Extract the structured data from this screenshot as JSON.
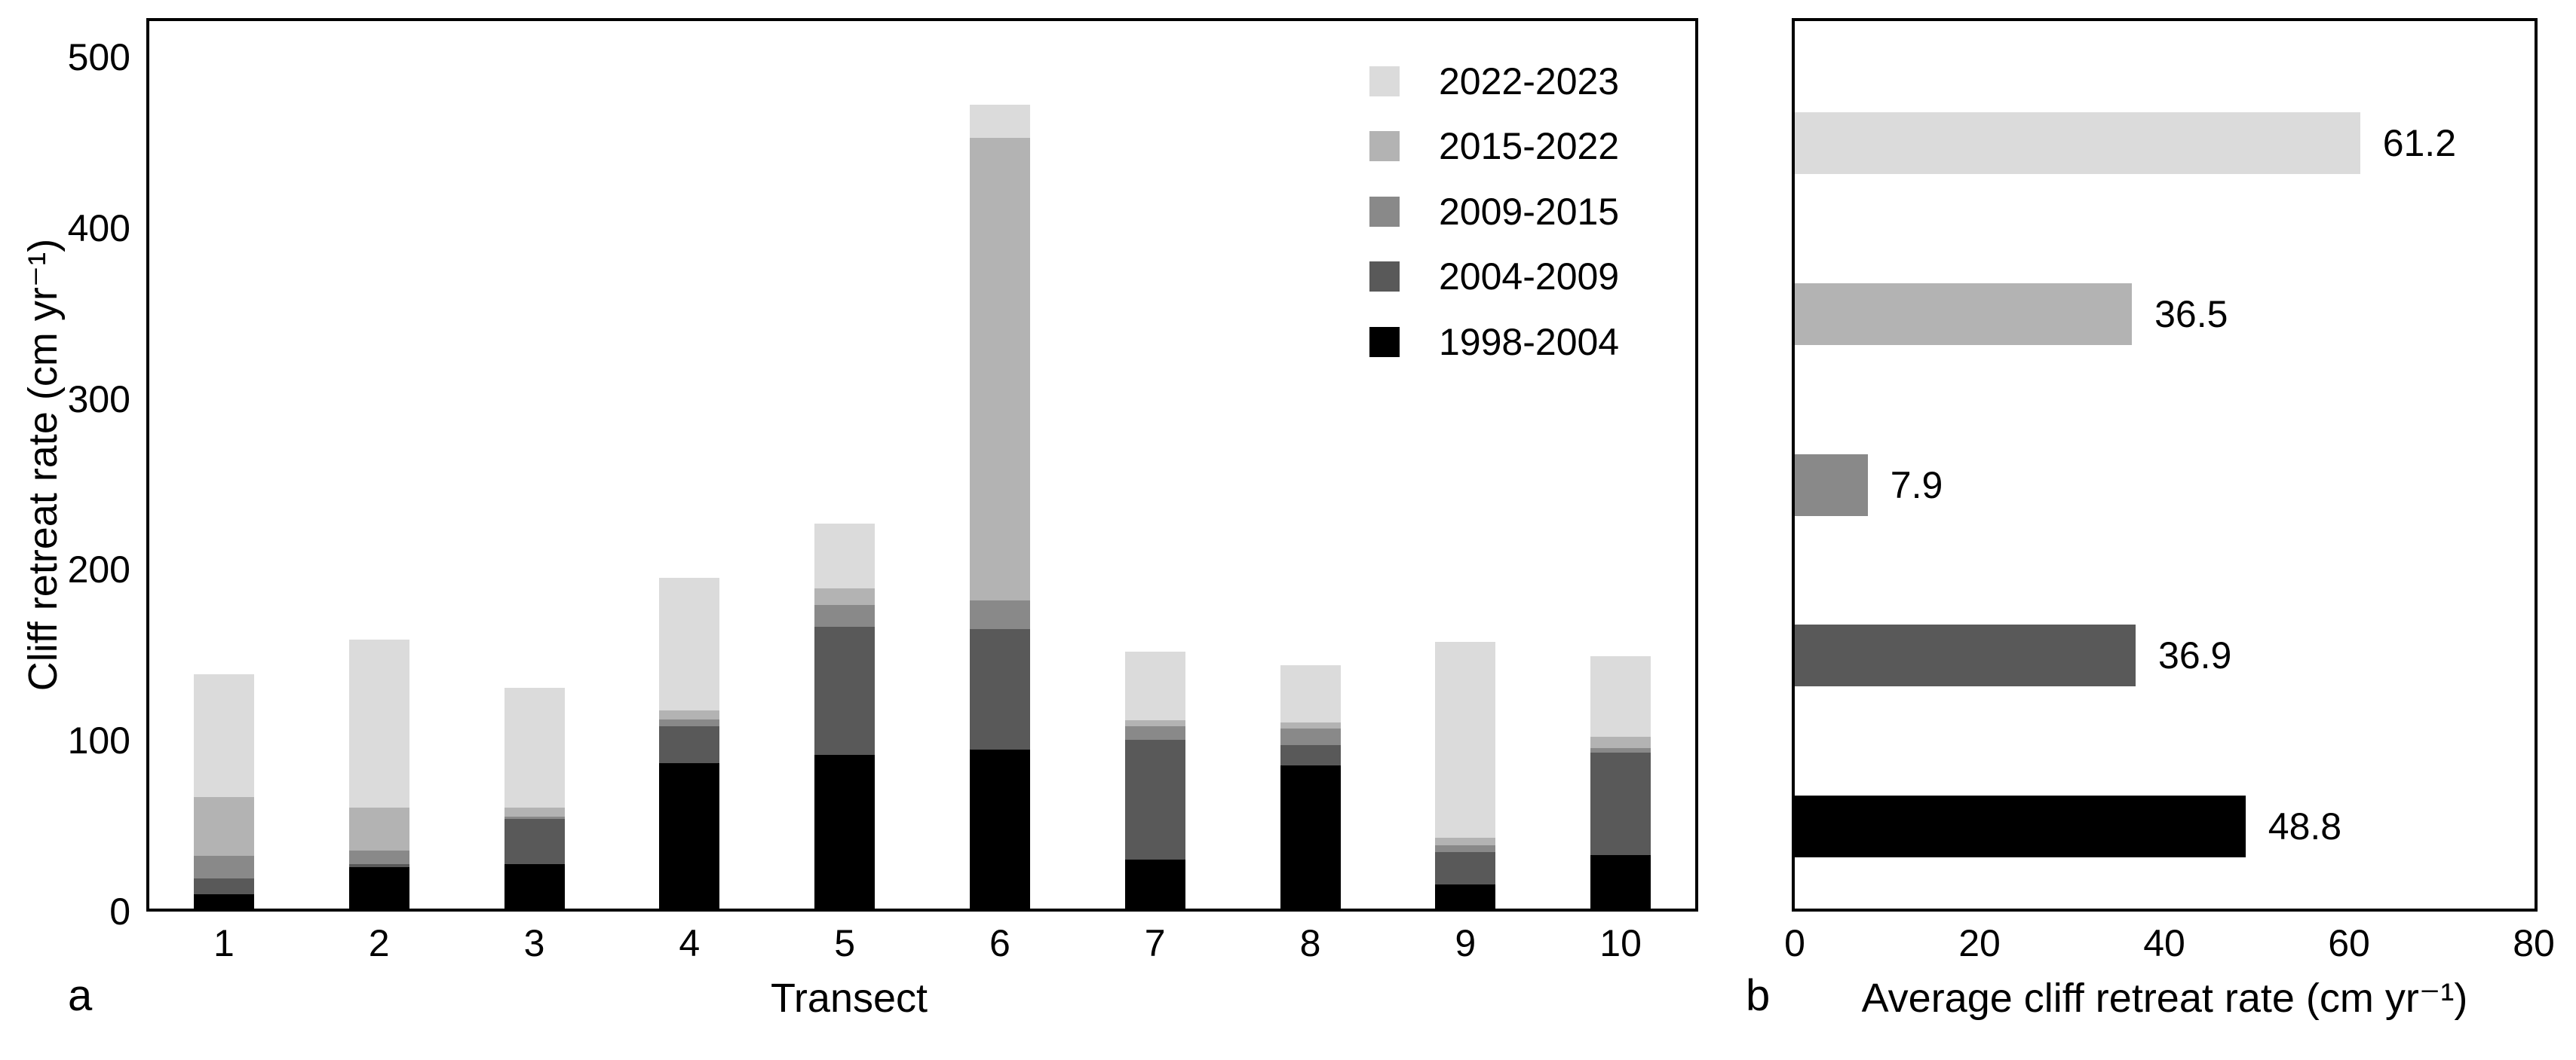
{
  "figure": {
    "panel_a_label": "a",
    "panel_b_label": "b"
  },
  "chart_data": [
    {
      "id": "panel-a",
      "type": "bar",
      "subtype": "stacked-vertical",
      "xlabel": "Transect",
      "ylabel": "Cliff retreat rate (cm yr⁻¹)",
      "ylim": [
        0,
        500
      ],
      "yticks": [
        0,
        100,
        200,
        300,
        400,
        500
      ],
      "grid": false,
      "categories": [
        "1",
        "2",
        "3",
        "4",
        "5",
        "6",
        "7",
        "8",
        "9",
        "10"
      ],
      "series": [
        {
          "name": "1998-2004",
          "color": "#000000",
          "values": [
            8.4,
            24.1,
            26.0,
            85.0,
            90.1,
            93.2,
            28.5,
            83.6,
            14.0,
            31.1
          ]
        },
        {
          "name": "2004-2009",
          "color": "#595959",
          "values": [
            9.1,
            1.9,
            26.4,
            21.8,
            75.0,
            70.4,
            70.2,
            12.2,
            19.0,
            60.2
          ]
        },
        {
          "name": "2009-2015",
          "color": "#898989",
          "values": [
            13.2,
            8.1,
            1.5,
            3.7,
            12.4,
            16.6,
            8.1,
            9.5,
            4.1,
            2.6
          ]
        },
        {
          "name": "2015-2022",
          "color": "#b3b3b3",
          "values": [
            34.6,
            24.9,
            5.2,
            5.6,
            9.8,
            270.7,
            3.4,
            3.4,
            4.4,
            6.5
          ]
        },
        {
          "name": "2022-2023",
          "color": "#dbdbdb",
          "values": [
            72.0,
            98.4,
            70.0,
            77.4,
            37.9,
            19.7,
            40.0,
            33.6,
            114.6,
            47.5
          ]
        }
      ],
      "legend": {
        "position": "top-right",
        "entries": [
          {
            "label": "2022-2023",
            "color": "#dbdbdb"
          },
          {
            "label": "2015-2022",
            "color": "#b3b3b3"
          },
          {
            "label": "2009-2015",
            "color": "#898989"
          },
          {
            "label": "2004-2009",
            "color": "#595959"
          },
          {
            "label": "1998-2004",
            "color": "#000000"
          }
        ]
      },
      "panel_label": "a"
    },
    {
      "id": "panel-b",
      "type": "bar",
      "subtype": "horizontal",
      "xlabel": "Average cliff retreat rate (cm yr⁻¹)",
      "xlim": [
        0,
        80
      ],
      "xticks": [
        0,
        20,
        40,
        60,
        80
      ],
      "grid": false,
      "categories": [
        "2022-2023",
        "2015-2022",
        "2009-2015",
        "2004-2009",
        "1998-2004"
      ],
      "values": [
        61.2,
        36.5,
        7.9,
        36.9,
        48.8
      ],
      "colors": [
        "#dbdbdb",
        "#b3b3b3",
        "#898989",
        "#595959",
        "#000000"
      ],
      "value_labels": [
        "61.2",
        "36.5",
        "7.9",
        "36.9",
        "48.8"
      ],
      "panel_label": "b"
    }
  ]
}
